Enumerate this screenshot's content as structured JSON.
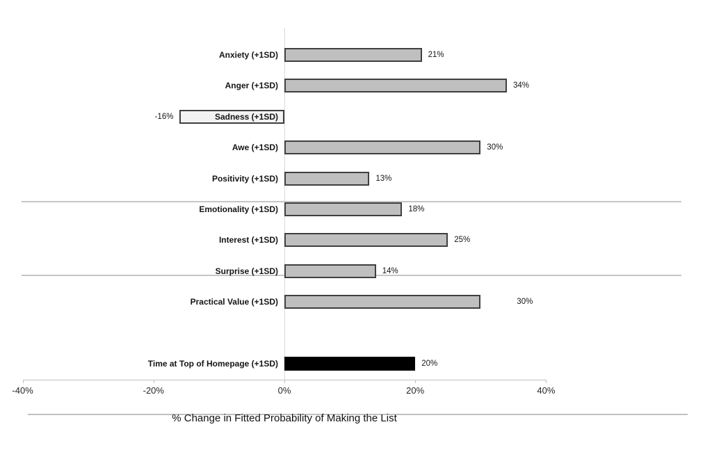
{
  "chart_data": {
    "type": "bar",
    "orientation": "horizontal",
    "title": "",
    "xlabel": "% Change in Fitted Probability of Making the List",
    "ylabel": "",
    "xlim": [
      -40,
      40
    ],
    "grid": false,
    "legend": false,
    "x_ticks": [
      {
        "value": -40,
        "label": "-40%"
      },
      {
        "value": -20,
        "label": "-20%"
      },
      {
        "value": 0,
        "label": "0%"
      },
      {
        "value": 20,
        "label": "20%"
      },
      {
        "value": 40,
        "label": "40%"
      }
    ],
    "rows": [
      {
        "label": "Anxiety (+1SD)",
        "value": 21,
        "value_label": "21%",
        "slot": 0
      },
      {
        "label": "Anger (+1SD)",
        "value": 34,
        "value_label": "34%",
        "slot": 1
      },
      {
        "label": "Sadness (+1SD)",
        "value": -16,
        "value_label": "-16%",
        "slot": 2,
        "fill": "#f2f2f2"
      },
      {
        "label": "Awe (+1SD)",
        "value": 30,
        "value_label": "30%",
        "slot": 3
      },
      {
        "label": "Positivity (+1SD)",
        "value": 13,
        "value_label": "13%",
        "slot": 4
      },
      {
        "label": "Emotionality (+1SD)",
        "value": 18,
        "value_label": "18%",
        "slot": 5
      },
      {
        "label": "Interest (+1SD)",
        "value": 25,
        "value_label": "25%",
        "slot": 6
      },
      {
        "label": "Surprise (+1SD)",
        "value": 14,
        "value_label": "14%",
        "slot": 7
      },
      {
        "label": "Practical Value (+1SD)",
        "value": 30,
        "value_label": "30%",
        "slot": 8,
        "value_label_gap": 52
      },
      {
        "label": "Time at Top of Homepage (+1SD)",
        "value": 20,
        "value_label": "20%",
        "slot": 10,
        "fill": "#000000",
        "border": "#000000"
      }
    ]
  },
  "colors": {
    "background": "#ffffff",
    "bar_fill": "#bfbfbf",
    "bar_border": "#3f3f3f",
    "separator_line": "#c6c6c6",
    "axis_line": "#bfbfbf",
    "zero_line": "#d9d9d9",
    "text": "#151515"
  }
}
